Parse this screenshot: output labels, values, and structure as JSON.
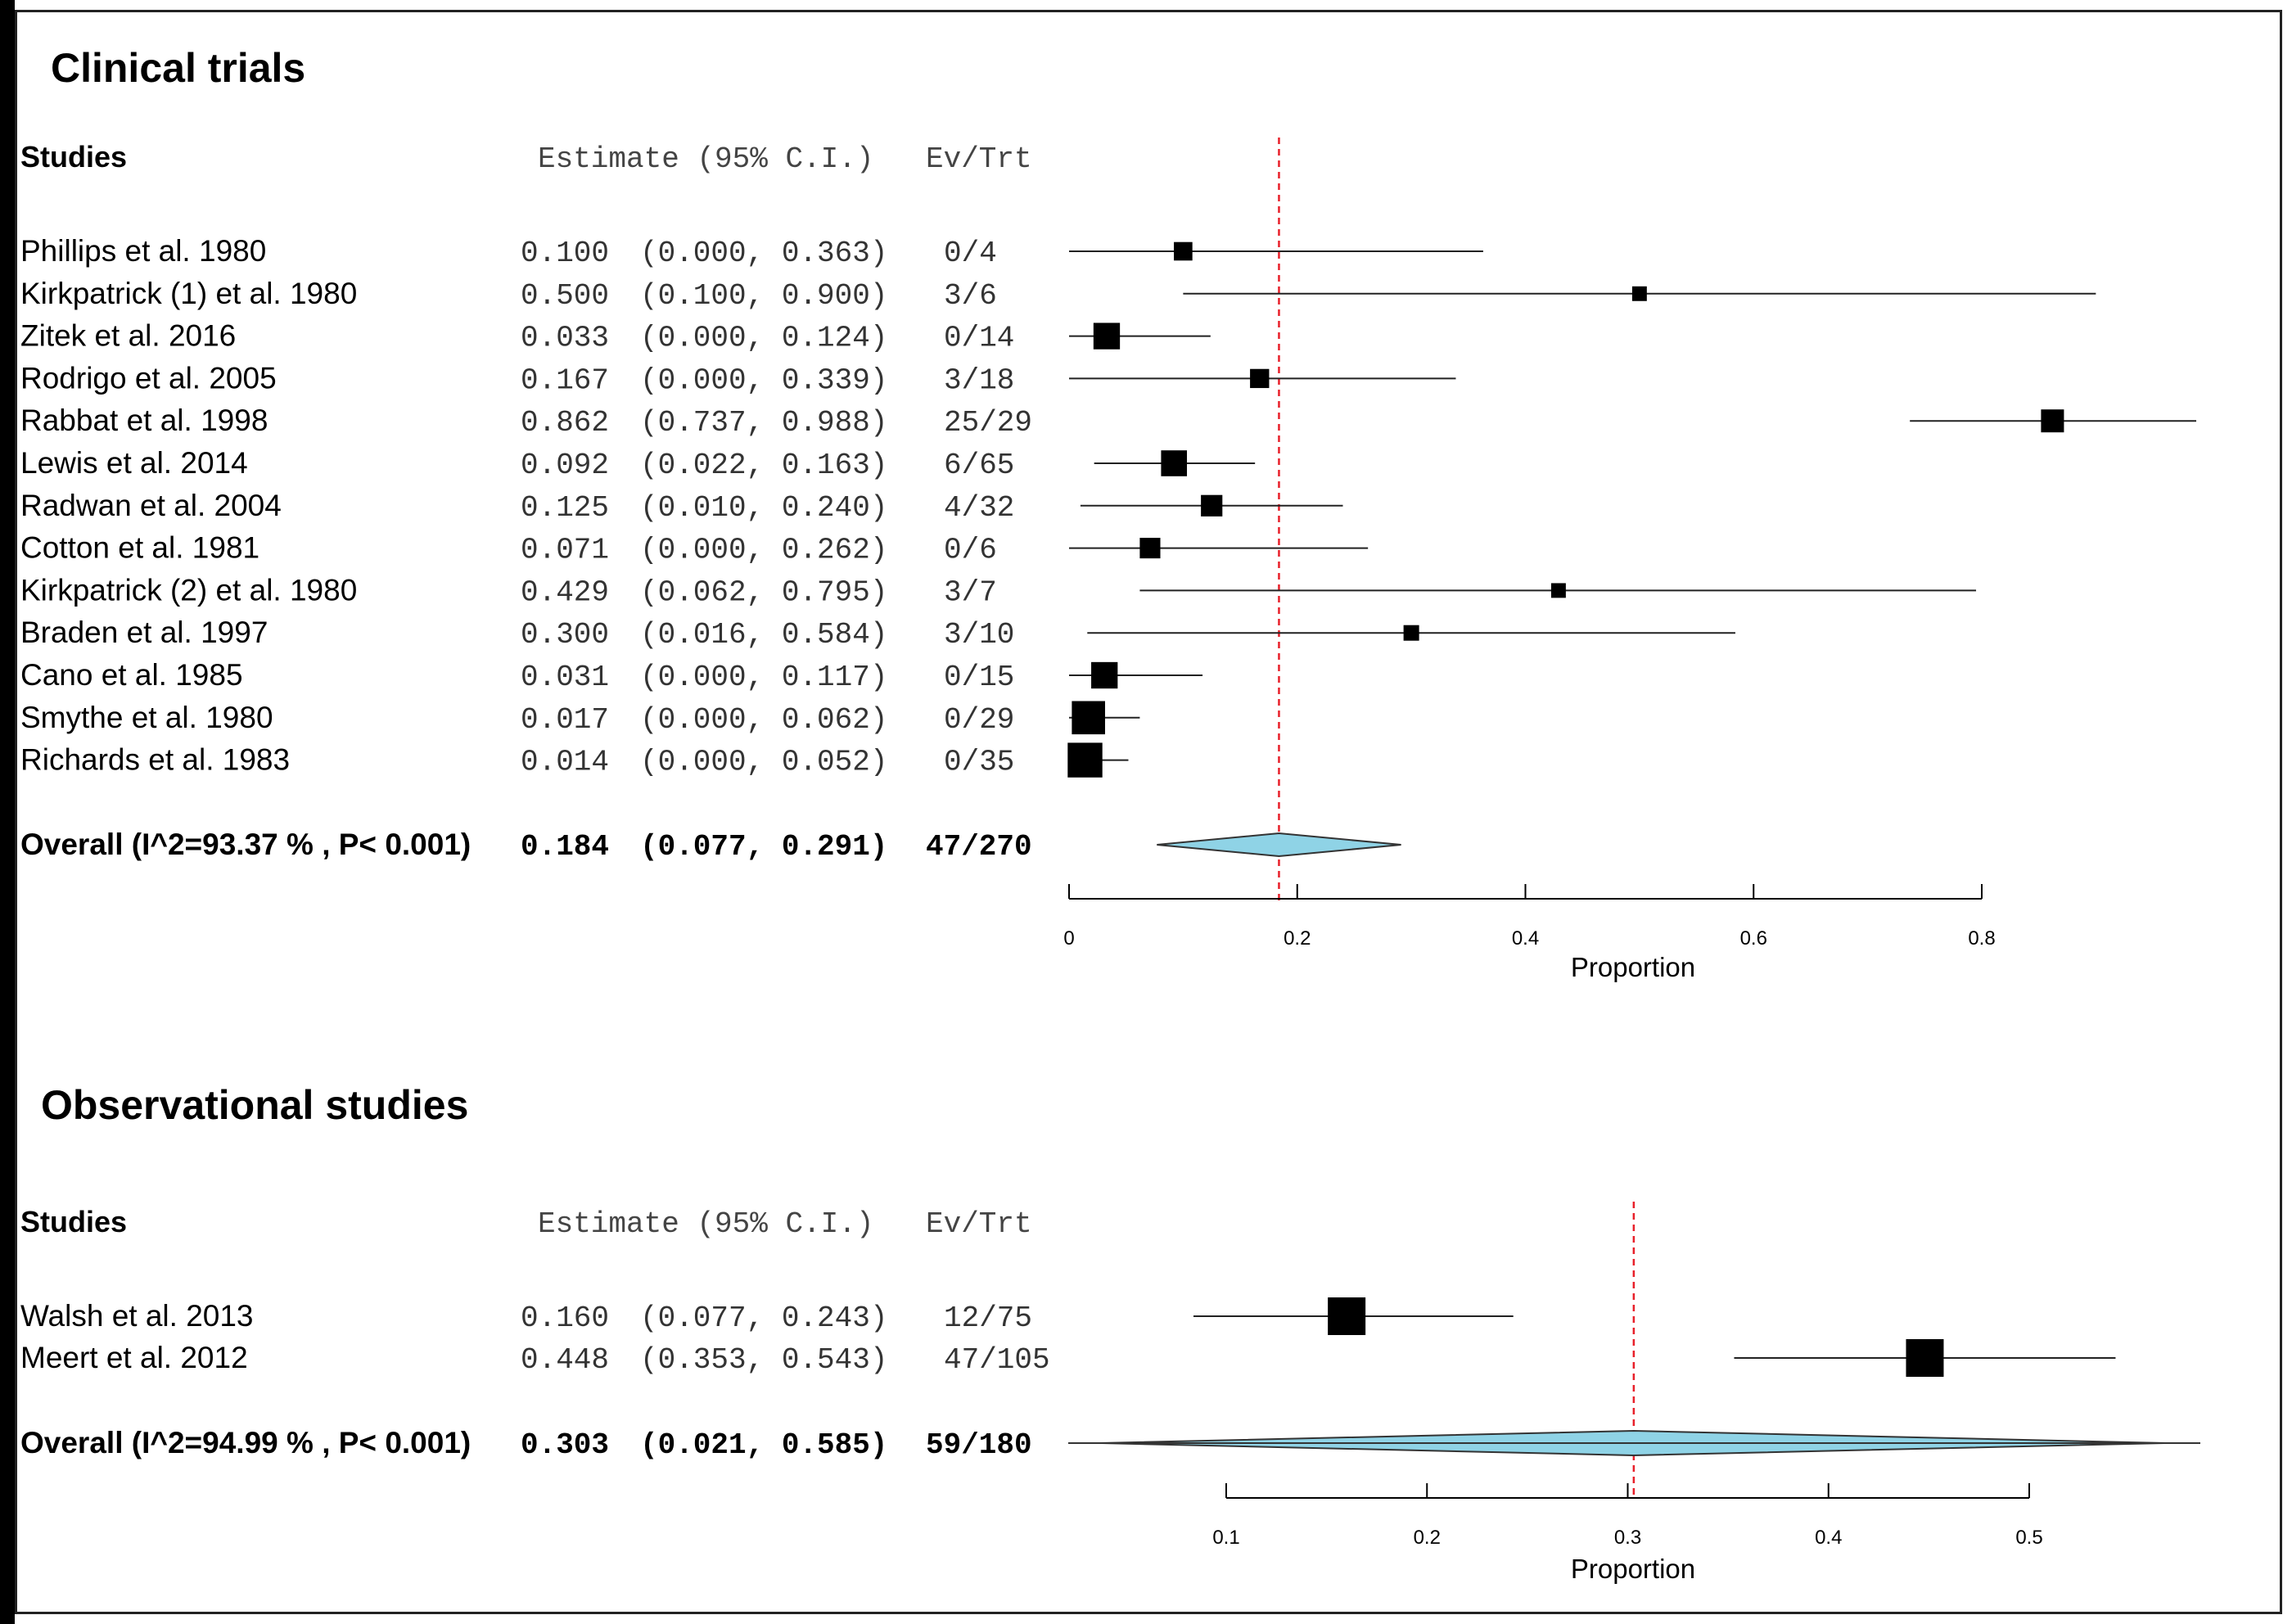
{
  "chart_data": [
    {
      "type": "forest",
      "title": "Clinical trials",
      "header": {
        "studies": "Studies",
        "estimate": "Estimate (95% C.I.)",
        "evtrt": "Ev/Trt"
      },
      "xlabel": "Proportion",
      "xlim": [
        0,
        0.8
      ],
      "xticks": [
        "0",
        "0.2",
        "0.4",
        "0.6",
        "0.8"
      ],
      "reference_line": 0.184,
      "colors": {
        "diamond": "#8fd3e6",
        "ref_line": "#e8202a"
      },
      "studies": [
        {
          "name": "Phillips et al. 1980",
          "est": 0.1,
          "lo": 0.0,
          "hi": 0.363,
          "est_text": "0.100",
          "ci_text": "(0.000, 0.363)",
          "evtrt": "0/4",
          "weight": 0.35
        },
        {
          "name": "Kirkpatrick (1) et al. 1980",
          "est": 0.5,
          "lo": 0.1,
          "hi": 0.9,
          "est_text": "0.500",
          "ci_text": "(0.100, 0.900)",
          "evtrt": "3/6",
          "weight": 0.22
        },
        {
          "name": "Zitek et al. 2016",
          "est": 0.033,
          "lo": 0.0,
          "hi": 0.124,
          "est_text": "0.033",
          "ci_text": "(0.000, 0.124)",
          "evtrt": "0/14",
          "weight": 0.62
        },
        {
          "name": "Rodrigo et al. 2005",
          "est": 0.167,
          "lo": 0.0,
          "hi": 0.339,
          "est_text": "0.167",
          "ci_text": "(0.000, 0.339)",
          "evtrt": "3/18",
          "weight": 0.37
        },
        {
          "name": "Rabbat et al. 1998",
          "est": 0.862,
          "lo": 0.737,
          "hi": 0.988,
          "est_text": "0.862",
          "ci_text": "(0.737, 0.988)",
          "evtrt": "25/29",
          "weight": 0.5
        },
        {
          "name": "Lewis et al. 2014",
          "est": 0.092,
          "lo": 0.022,
          "hi": 0.163,
          "est_text": "0.092",
          "ci_text": "(0.022, 0.163)",
          "evtrt": "6/65",
          "weight": 0.6
        },
        {
          "name": "Radwan et al. 2004",
          "est": 0.125,
          "lo": 0.01,
          "hi": 0.24,
          "est_text": "0.125",
          "ci_text": "(0.010, 0.240)",
          "evtrt": "4/32",
          "weight": 0.45
        },
        {
          "name": "Cotton et al. 1981",
          "est": 0.071,
          "lo": 0.0,
          "hi": 0.262,
          "est_text": "0.071",
          "ci_text": "(0.000, 0.262)",
          "evtrt": "0/6",
          "weight": 0.42
        },
        {
          "name": "Kirkpatrick (2) et al. 1980",
          "est": 0.429,
          "lo": 0.062,
          "hi": 0.795,
          "est_text": "0.429",
          "ci_text": "(0.062, 0.795)",
          "evtrt": "3/7",
          "weight": 0.22
        },
        {
          "name": "Braden et al. 1997",
          "est": 0.3,
          "lo": 0.016,
          "hi": 0.584,
          "est_text": "0.300",
          "ci_text": "(0.016, 0.584)",
          "evtrt": "3/10",
          "weight": 0.25
        },
        {
          "name": "Cano et al. 1985",
          "est": 0.031,
          "lo": 0.0,
          "hi": 0.117,
          "est_text": "0.031",
          "ci_text": "(0.000, 0.117)",
          "evtrt": "0/15",
          "weight": 0.62
        },
        {
          "name": "Smythe et al. 1980",
          "est": 0.017,
          "lo": 0.0,
          "hi": 0.062,
          "est_text": "0.017",
          "ci_text": "(0.000, 0.062)",
          "evtrt": "0/29",
          "weight": 0.85
        },
        {
          "name": "Richards et al. 1983",
          "est": 0.014,
          "lo": 0.0,
          "hi": 0.052,
          "est_text": "0.014",
          "ci_text": "(0.000, 0.052)",
          "evtrt": "0/35",
          "weight": 0.9
        }
      ],
      "overall": {
        "name": "Overall (I^2=93.37 % , P< 0.001)",
        "est": 0.184,
        "lo": 0.077,
        "hi": 0.291,
        "est_text": "0.184",
        "ci_text": "(0.077, 0.291)",
        "evtrt": "47/270"
      }
    },
    {
      "type": "forest",
      "title": "Observational studies",
      "header": {
        "studies": "Studies",
        "estimate": "Estimate (95% C.I.)",
        "evtrt": "Ev/Trt"
      },
      "xlabel": "Proportion",
      "xlim": [
        0.1,
        0.5
      ],
      "xticks": [
        "0.1",
        "0.2",
        "0.3",
        "0.4",
        "0.5"
      ],
      "reference_line": 0.303,
      "colors": {
        "diamond": "#8fd3e6",
        "ref_line": "#e8202a"
      },
      "studies": [
        {
          "name": "Walsh et al. 2013",
          "est": 0.16,
          "lo": 0.077,
          "hi": 0.243,
          "est_text": "0.160",
          "ci_text": "(0.077, 0.243)",
          "evtrt": "12/75",
          "weight": 1.0
        },
        {
          "name": "Meert et al. 2012",
          "est": 0.448,
          "lo": 0.353,
          "hi": 0.543,
          "est_text": "0.448",
          "ci_text": "(0.353, 0.543)",
          "evtrt": "47/105",
          "weight": 1.0
        }
      ],
      "overall": {
        "name": "Overall (I^2=94.99 % , P< 0.001)",
        "est": 0.303,
        "lo": 0.021,
        "hi": 0.585,
        "est_text": "0.303",
        "ci_text": "(0.021, 0.585)",
        "evtrt": "59/180"
      }
    }
  ]
}
